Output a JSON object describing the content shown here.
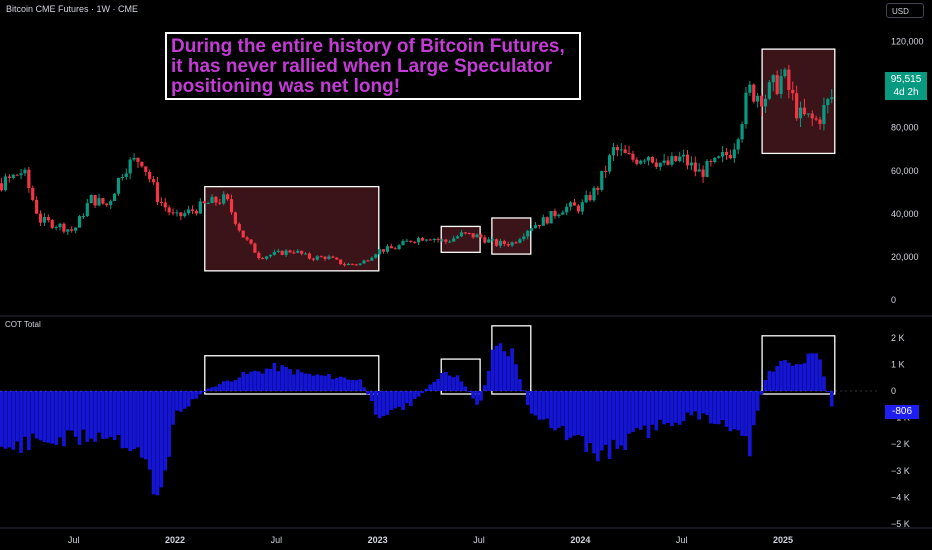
{
  "header": {
    "title": "Bitcoin CME Futures · 1W · CME",
    "currency": "USD"
  },
  "price_tag": {
    "value": "95,515",
    "countdown": "4d 2h"
  },
  "cot": {
    "title": "COT Total",
    "value_tag": "-806"
  },
  "annotation": {
    "lines": [
      "During the entire history of Bitcoin Futures,",
      "it has never rallied when Large Speculator",
      "positioning was net long!"
    ]
  },
  "colors": {
    "up": "#089981",
    "down": "#f23645",
    "cot_bar": "#1515d8",
    "highlight_fill": "#3a1418",
    "annotation_text": "#c43bd6"
  },
  "chart_data": [
    {
      "type": "candlestick",
      "title": "Bitcoin CME Futures",
      "timeframe": "1W",
      "ylabel": "USD",
      "ylim": [
        0,
        130000
      ],
      "y_ticks": [
        "120,000",
        "100,000",
        "80,000",
        "60,000",
        "40,000",
        "20,000",
        "0"
      ],
      "x_ticks": [
        "Jul",
        "2022",
        "Jul",
        "2023",
        "Jul",
        "2024",
        "Jul",
        "2025"
      ],
      "x_tick_dates": [
        "2021-07",
        "2022-01",
        "2022-07",
        "2023-01",
        "2023-07",
        "2024-01",
        "2024-07",
        "2025-01"
      ],
      "close_path": [
        [
          "2021-01",
          31000
        ],
        [
          "2021-02",
          50000
        ],
        [
          "2021-04",
          60000
        ],
        [
          "2021-05",
          37000
        ],
        [
          "2021-06",
          35000
        ],
        [
          "2021-07",
          32000
        ],
        [
          "2021-08",
          47000
        ],
        [
          "2021-09",
          44000
        ],
        [
          "2021-10",
          62000
        ],
        [
          "2021-11",
          66000
        ],
        [
          "2021-12",
          47000
        ],
        [
          "2022-01",
          38000
        ],
        [
          "2022-03",
          45000
        ],
        [
          "2022-04",
          47000
        ],
        [
          "2022-05",
          30000
        ],
        [
          "2022-06",
          20000
        ],
        [
          "2022-08",
          23000
        ],
        [
          "2022-09",
          19500
        ],
        [
          "2022-10",
          20000
        ],
        [
          "2022-11",
          16500
        ],
        [
          "2022-12",
          16800
        ],
        [
          "2023-01",
          23000
        ],
        [
          "2023-02",
          24000
        ],
        [
          "2023-03",
          28000
        ],
        [
          "2023-04",
          29500
        ],
        [
          "2023-05",
          27000
        ],
        [
          "2023-06",
          30500
        ],
        [
          "2023-07",
          29500
        ],
        [
          "2023-08",
          26000
        ],
        [
          "2023-09",
          26500
        ],
        [
          "2023-10",
          34000
        ],
        [
          "2023-11",
          37500
        ],
        [
          "2023-12",
          43000
        ],
        [
          "2024-01",
          43000
        ],
        [
          "2024-02",
          52000
        ],
        [
          "2024-03",
          70000
        ],
        [
          "2024-04",
          65000
        ],
        [
          "2024-05",
          68000
        ],
        [
          "2024-06",
          62000
        ],
        [
          "2024-07",
          66000
        ],
        [
          "2024-08",
          59000
        ],
        [
          "2024-09",
          63000
        ],
        [
          "2024-10",
          70000
        ],
        [
          "2024-11",
          97000
        ],
        [
          "2024-12",
          95000
        ],
        [
          "2025-01",
          104000
        ],
        [
          "2025-02",
          85000
        ],
        [
          "2025-03",
          83000
        ],
        [
          "2025-04",
          95515
        ]
      ],
      "last_price": 95515,
      "highlight_periods": [
        {
          "start": "2022-03",
          "end": "2022-12"
        },
        {
          "start": "2023-05",
          "end": "2023-06"
        },
        {
          "start": "2023-08",
          "end": "2023-09"
        },
        {
          "start": "2024-12",
          "end": "2025-03"
        }
      ]
    },
    {
      "type": "bar",
      "title": "COT Total",
      "ylim": [
        -5000,
        2500
      ],
      "y_ticks": [
        "2 K",
        "1 K",
        "0",
        "−1 K",
        "−2 K",
        "−3 K",
        "−4 K",
        "−5 K"
      ],
      "last_value": -806,
      "x": [
        "2021-01",
        "2021-03",
        "2021-05",
        "2021-07",
        "2021-09",
        "2021-11",
        "2021-12",
        "2022-01",
        "2022-03",
        "2022-05",
        "2022-07",
        "2022-09",
        "2022-11",
        "2022-12",
        "2023-01",
        "2023-03",
        "2023-05",
        "2023-06",
        "2023-07",
        "2023-08",
        "2023-09",
        "2023-10",
        "2023-12",
        "2024-01",
        "2024-02",
        "2024-04",
        "2024-06",
        "2024-08",
        "2024-10",
        "2024-11",
        "2024-12",
        "2025-01",
        "2025-02",
        "2025-03",
        "2025-04"
      ],
      "values": [
        -2800,
        -2200,
        -1900,
        -1800,
        -1600,
        -2200,
        -4500,
        -900,
        100,
        600,
        900,
        600,
        500,
        400,
        -900,
        -500,
        800,
        400,
        -600,
        1800,
        1400,
        -700,
        -1600,
        -2000,
        -2400,
        -1800,
        -1200,
        -900,
        -1300,
        -2200,
        600,
        1200,
        900,
        1500,
        -806
      ]
    }
  ]
}
